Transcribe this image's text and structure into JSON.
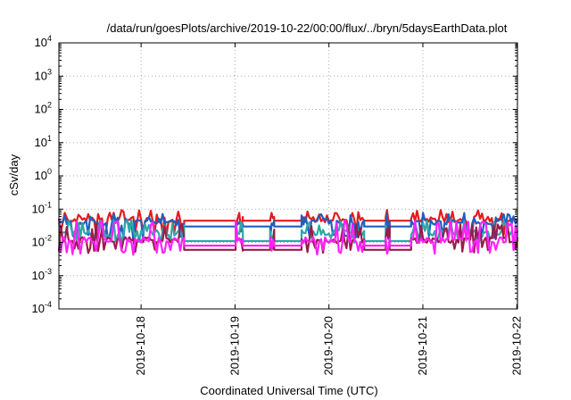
{
  "chart_data": {
    "type": "line",
    "title": "/data/run/goesPlots/archive/2019-10-22/00:00/flux/../bryn/5daysEarthData.plot",
    "xlabel": "Coordinated Universal Time (UTC)",
    "ylabel": "cSv/day",
    "yscale": "log",
    "ylim": [
      0.0001,
      10000
    ],
    "xlim": [
      "2019-10-17T03:00",
      "2019-10-22T00:10"
    ],
    "y_ticks": [
      {
        "value": 0.0001,
        "base": "10",
        "exp": "-4"
      },
      {
        "value": 0.001,
        "base": "10",
        "exp": "-3"
      },
      {
        "value": 0.01,
        "base": "10",
        "exp": "-2"
      },
      {
        "value": 0.1,
        "base": "10",
        "exp": "-1"
      },
      {
        "value": 1,
        "base": "10",
        "exp": "0"
      },
      {
        "value": 10,
        "base": "10",
        "exp": "1"
      },
      {
        "value": 100,
        "base": "10",
        "exp": "2"
      },
      {
        "value": 1000,
        "base": "10",
        "exp": "3"
      },
      {
        "value": 10000,
        "base": "10",
        "exp": "4"
      }
    ],
    "x_ticks": [
      {
        "value": "2019-10-18T00:00",
        "label": "2019-10-18"
      },
      {
        "value": "2019-10-19T00:00",
        "label": "2019-10-19"
      },
      {
        "value": "2019-10-20T00:00",
        "label": "2019-10-20"
      },
      {
        "value": "2019-10-21T00:00",
        "label": "2019-10-21"
      },
      {
        "value": "2019-10-22T00:00",
        "label": "2019-10-22"
      }
    ],
    "grid": true,
    "series": [
      {
        "color": "#e41a1c",
        "base": 0.05,
        "peak": 0.08,
        "dip": 0.02,
        "quiet": 0.045
      },
      {
        "color": "#1f5fbf",
        "base": 0.04,
        "peak": 0.065,
        "dip": 0.015,
        "quiet": 0.03
      },
      {
        "color": "#2ca8a8",
        "base": 0.02,
        "peak": 0.04,
        "dip": 0.012,
        "quiet": 0.011
      },
      {
        "color": "#9b1c4c",
        "base": 0.012,
        "peak": 0.03,
        "dip": 0.006,
        "quiet": 0.006
      },
      {
        "color": "#ff22ff",
        "base": 0.012,
        "peak": 0.04,
        "dip": 0.005,
        "quiet": 0.008
      }
    ],
    "segments": [
      {
        "start": "2019-10-17T03:00",
        "end": "2019-10-18T11:00",
        "state": "active"
      },
      {
        "start": "2019-10-18T11:00",
        "end": "2019-10-19T00:10",
        "state": "quiet"
      },
      {
        "start": "2019-10-19T00:10",
        "end": "2019-10-19T02:00",
        "state": "active"
      },
      {
        "start": "2019-10-19T02:00",
        "end": "2019-10-19T09:00",
        "state": "quiet"
      },
      {
        "start": "2019-10-19T09:00",
        "end": "2019-10-19T10:00",
        "state": "active"
      },
      {
        "start": "2019-10-19T10:00",
        "end": "2019-10-19T17:00",
        "state": "quiet"
      },
      {
        "start": "2019-10-19T17:00",
        "end": "2019-10-20T09:00",
        "state": "active"
      },
      {
        "start": "2019-10-20T09:00",
        "end": "2019-10-20T14:30",
        "state": "quiet"
      },
      {
        "start": "2019-10-20T14:30",
        "end": "2019-10-20T15:30",
        "state": "active"
      },
      {
        "start": "2019-10-20T15:30",
        "end": "2019-10-20T21:00",
        "state": "quiet"
      },
      {
        "start": "2019-10-20T21:00",
        "end": "2019-10-22T00:10",
        "state": "active"
      }
    ]
  }
}
